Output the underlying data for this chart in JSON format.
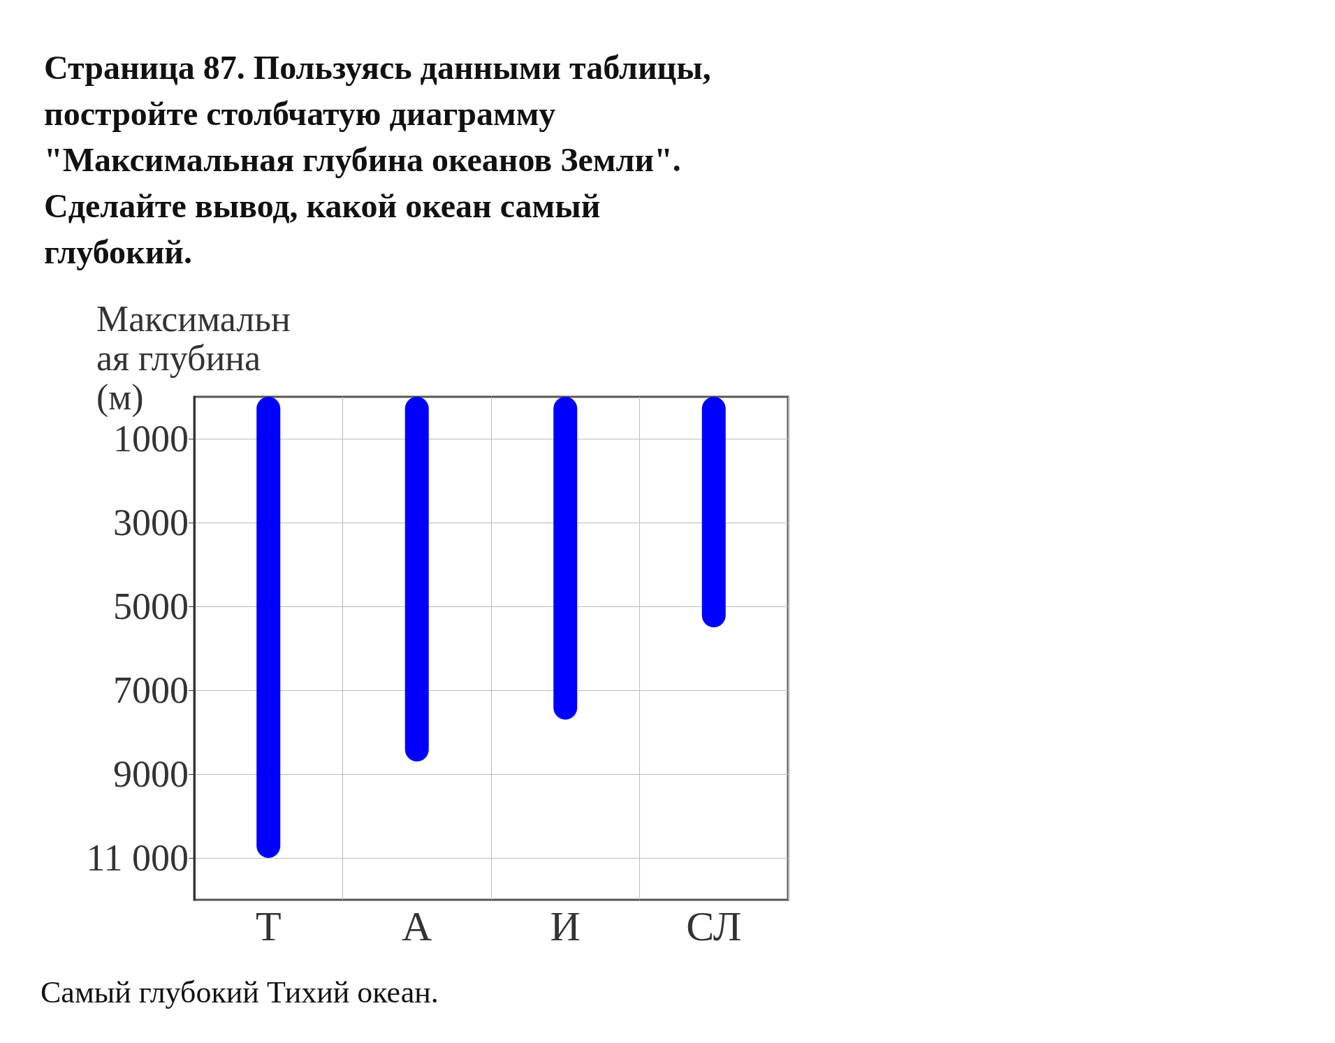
{
  "chart_data": {
    "type": "bar",
    "title": "Страница 87. Пользуясь данными таблицы, постройте столбчатую диаграмму \"Максимальная глубина океанов Земли\". Сделайте вывод, какой океан самый глубокий.",
    "ylabel": "Максимальная глубина (м)",
    "categories": [
      "Т",
      "А",
      "И",
      "СЛ"
    ],
    "values": [
      11000,
      8700,
      7700,
      5500
    ],
    "color": "#0000ff",
    "ylim": [
      12000,
      0
    ],
    "yticks": [
      1000,
      3000,
      5000,
      7000,
      9000,
      {
        "value": 11000,
        "label": "11 000"
      }
    ],
    "grid": true,
    "annotations": [
      "Самый глубокий Тихий океан."
    ]
  }
}
